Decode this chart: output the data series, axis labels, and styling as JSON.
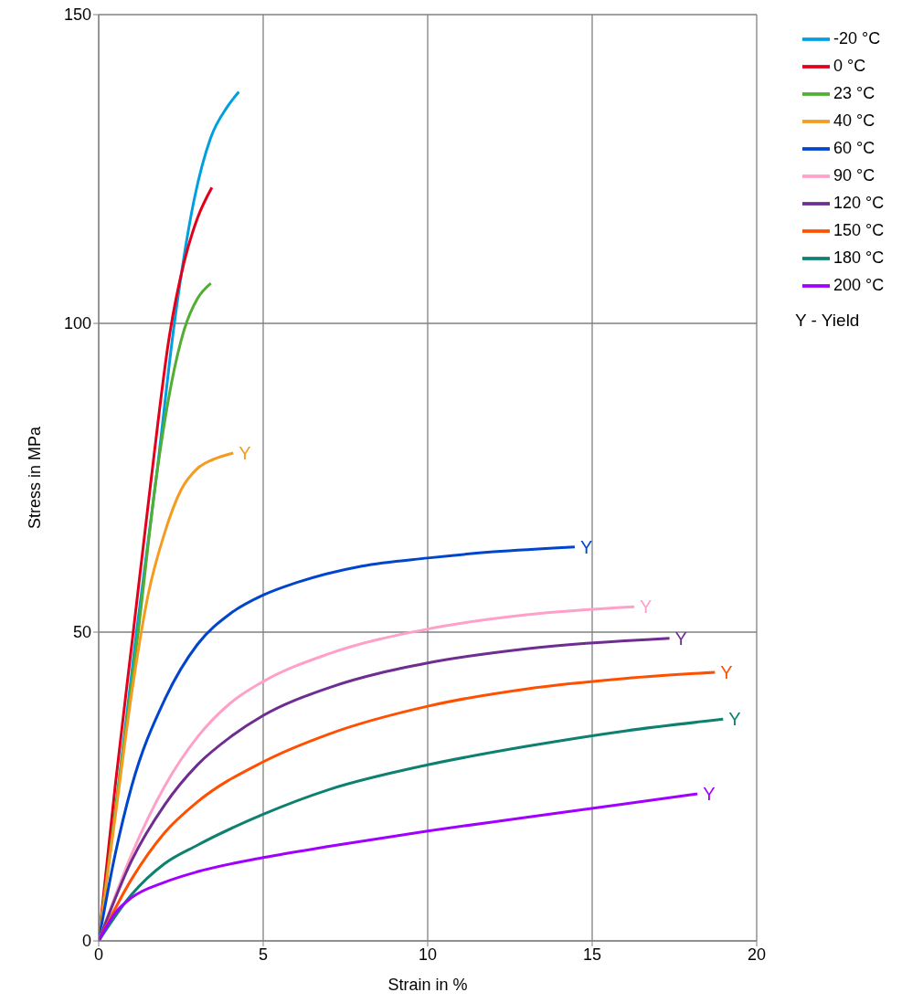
{
  "chart_data": {
    "type": "line",
    "xlabel": "Strain in  %",
    "ylabel": "Stress in  MPa",
    "xlim": [
      0,
      20
    ],
    "xticks": [
      0,
      5,
      10,
      15,
      20
    ],
    "ylim": [
      0,
      150
    ],
    "yticks": [
      0,
      50,
      100,
      150
    ],
    "grid": true,
    "legend": "top right",
    "marker": "none",
    "line_style": "solid",
    "series": [
      {
        "name": "-20 °C",
        "color": "#00a0e0",
        "x": [
          0,
          0.6,
          1.15,
          1.75,
          2.3,
          2.9,
          3.4,
          3.9,
          4.26
        ],
        "values": [
          0,
          25,
          50,
          75,
          100,
          120,
          130,
          135,
          137.5
        ]
      },
      {
        "name": "0 °C",
        "color": "#e2001a",
        "x": [
          0,
          0.5,
          1.05,
          1.6,
          2.15,
          2.6,
          3.0,
          3.44
        ],
        "values": [
          0,
          25,
          50,
          75,
          98,
          110,
          117,
          122
        ]
      },
      {
        "name": "23 °C",
        "color": "#52ae32",
        "x": [
          0,
          0.6,
          1.2,
          1.75,
          2.2,
          2.6,
          3.0,
          3.41
        ],
        "values": [
          0,
          25,
          50,
          75,
          90,
          99,
          104,
          106.5
        ]
      },
      {
        "name": "40 °C",
        "color": "#f39c1f",
        "x": [
          0,
          0.5,
          1.0,
          1.5,
          2.0,
          2.5,
          3.0,
          3.5,
          4.09
        ],
        "values": [
          0,
          20,
          40,
          56,
          66,
          73,
          76.5,
          78,
          79
        ]
      },
      {
        "name": "60 °C",
        "color": "#0046cc",
        "x": [
          0,
          0.5,
          1,
          2,
          3,
          4,
          5,
          6,
          8,
          10,
          12,
          14.47
        ],
        "values": [
          0,
          14,
          25,
          39,
          48,
          53,
          56,
          58,
          60.7,
          62,
          63,
          63.8
        ]
      },
      {
        "name": "90 °C",
        "color": "#ffa0c8",
        "x": [
          0,
          1,
          2,
          3,
          4,
          5,
          7,
          10,
          13,
          16.28
        ],
        "values": [
          0,
          14,
          25,
          33,
          38.5,
          42,
          46.5,
          50.5,
          52.8,
          54.1
        ]
      },
      {
        "name": "120 °C",
        "color": "#6e2d91",
        "x": [
          0,
          1,
          2,
          3,
          4,
          5,
          7,
          10,
          13,
          17.35
        ],
        "values": [
          0,
          13,
          22,
          28.5,
          33,
          36.5,
          41,
          45,
          47.3,
          49
        ]
      },
      {
        "name": "150 °C",
        "color": "#ff5000",
        "x": [
          0,
          1,
          2,
          3,
          5,
          7,
          10,
          13,
          16,
          18.73
        ],
        "values": [
          0,
          10,
          17.5,
          22.5,
          29,
          33.5,
          38,
          40.8,
          42.5,
          43.5
        ]
      },
      {
        "name": "180 °C",
        "color": "#0e8070",
        "x": [
          0,
          1,
          2,
          3,
          5,
          7,
          10,
          13,
          16,
          18.98
        ],
        "values": [
          0,
          7.5,
          12.5,
          15.5,
          20.5,
          24.5,
          28.5,
          31.5,
          34,
          35.9
        ]
      },
      {
        "name": "200 °C",
        "color": "#a000ff",
        "x": [
          0,
          0.5,
          1,
          2,
          3,
          5,
          7,
          10,
          13,
          16,
          18.2
        ],
        "values": [
          0,
          4.5,
          7,
          9.5,
          11.2,
          13.5,
          15.3,
          17.8,
          20,
          22.2,
          23.8
        ]
      }
    ],
    "annotations": [
      {
        "text": "Y",
        "x": 4.09,
        "y": 79
      },
      {
        "text": "Y",
        "x": 14.47,
        "y": 63.8
      },
      {
        "text": "Y",
        "x": 16.28,
        "y": 54.1
      },
      {
        "text": "Y",
        "x": 17.35,
        "y": 49
      },
      {
        "text": "Y",
        "x": 18.73,
        "y": 43.5
      },
      {
        "text": "Y",
        "x": 18.98,
        "y": 35.9
      },
      {
        "text": "Y",
        "x": 18.2,
        "y": 23.8
      },
      "Y - Yield"
    ]
  }
}
